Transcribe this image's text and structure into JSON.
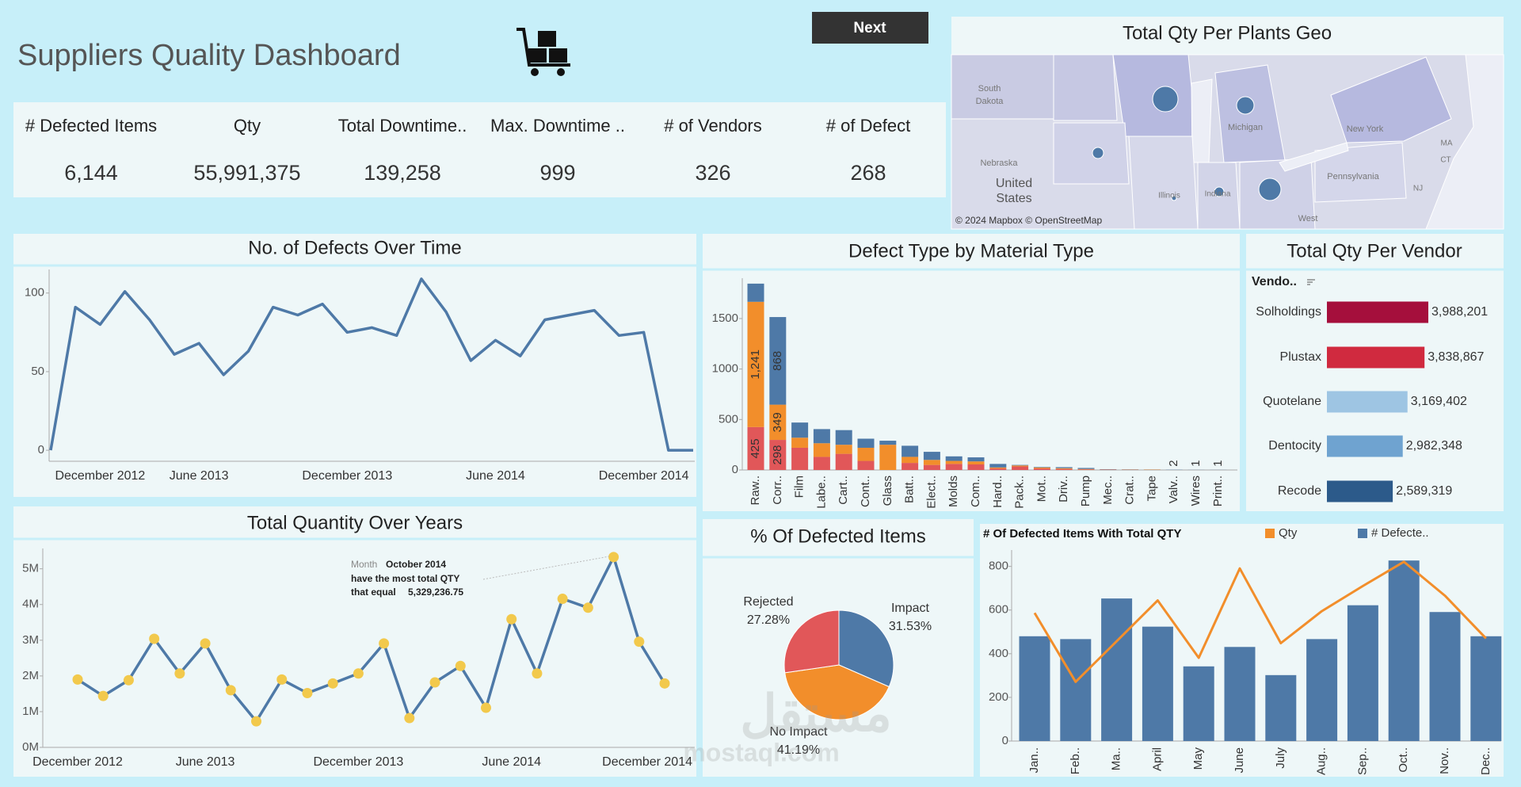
{
  "header": {
    "title": "Suppliers Quality Dashboard",
    "button": "Next"
  },
  "kpis": [
    {
      "label": "# Defected Items",
      "value": "6,144"
    },
    {
      "label": "Qty",
      "value": "55,991,375"
    },
    {
      "label": "Total Downtime..",
      "value": "139,258"
    },
    {
      "label": "Max. Downtime ..",
      "value": "999"
    },
    {
      "label": "# of Vendors",
      "value": "326"
    },
    {
      "label": "# of Defect",
      "value": "268"
    }
  ],
  "map": {
    "title": "Total Qty Per Plants Geo",
    "labels": [
      "South",
      "Dakota",
      "Nebraska",
      "United",
      "States",
      "Michigan",
      "Illinois",
      "Indiana",
      "New York",
      "Pennsylvania",
      "MA",
      "CT",
      "NJ",
      "West"
    ],
    "attribution": "© 2024 Mapbox © OpenStreetMap"
  },
  "watermark": {
    "arabic": "مستقل",
    "latin": "mostaql.com"
  },
  "chart_data": [
    {
      "type": "line",
      "title": "No. of Defects Over Time",
      "color": "#4e79a7",
      "categories": [
        null,
        null,
        "December 2012",
        null,
        null,
        null,
        "June 2013",
        null,
        null,
        null,
        null,
        null,
        "December 2013",
        null,
        null,
        null,
        null,
        null,
        "June 2014",
        null,
        null,
        null,
        null,
        null,
        "December 2014",
        null,
        null
      ],
      "values": [
        0,
        91,
        80,
        101,
        83,
        61,
        68,
        48,
        63,
        91,
        86,
        93,
        75,
        78,
        73,
        109,
        88,
        57,
        70,
        60,
        83,
        86,
        89,
        73,
        75,
        0,
        0
      ],
      "ylim": [
        -7,
        115
      ],
      "yticks": [
        0,
        50,
        100
      ]
    },
    {
      "type": "line",
      "title": "Total Quantity Over Years",
      "color": "#4e79a7",
      "marker_color": "#f2c94c",
      "categories": [
        "December 2012",
        null,
        null,
        null,
        null,
        "June 2013",
        null,
        null,
        null,
        null,
        null,
        "December 2013",
        null,
        null,
        null,
        null,
        null,
        "June 2014",
        null,
        null,
        null,
        null,
        null,
        "December 2014"
      ],
      "values": [
        1900000,
        1440000,
        1880000,
        3040000,
        2070000,
        2910000,
        1600000,
        730000,
        1900000,
        1520000,
        1790000,
        2070000,
        2910000,
        820000,
        1820000,
        2280000,
        1110000,
        3590000,
        2070000,
        4160000,
        3910000,
        5329236.75,
        2960000,
        1790000
      ],
      "ylim": [
        0,
        5570000
      ],
      "yticks": [
        {
          "value": 0,
          "label": "0M"
        },
        {
          "value": 1000000,
          "label": "1M"
        },
        {
          "value": 2000000,
          "label": "2M"
        },
        {
          "value": 3000000,
          "label": "3M"
        },
        {
          "value": 4000000,
          "label": "4M"
        },
        {
          "value": 5000000,
          "label": "5M"
        }
      ],
      "annotation": {
        "month_label": "Month",
        "month": "October 2014",
        "text": "have the most total QTY",
        "value_prefix": "that equal",
        "value_label": "5,329,236.75"
      }
    },
    {
      "type": "bar",
      "title": "Defect Type by Material Type",
      "stacked": true,
      "categories": [
        "Raw..",
        "Corr..",
        "Film",
        "Labe..",
        "Cart..",
        "Cont..",
        "Glass",
        "Batt..",
        "Elect..",
        "Molds",
        "Com..",
        "Hard..",
        "Pack..",
        "Mot..",
        "Driv..",
        "Pump",
        "Mec..",
        "Crat..",
        "Tape",
        "Valv..",
        "Wires",
        "Print.."
      ],
      "series": [
        {
          "color": "#e15759",
          "values": [
            425,
            298,
            220,
            130,
            160,
            90,
            0,
            70,
            50,
            60,
            55,
            15,
            35,
            15,
            10,
            5,
            3,
            2,
            1,
            0,
            0,
            0
          ],
          "value_labels": [
            "425",
            "298",
            null,
            null,
            null,
            null,
            null,
            null,
            null,
            null,
            null,
            null,
            null,
            null,
            null,
            null,
            null,
            null,
            null,
            null,
            null,
            null
          ]
        },
        {
          "color": "#f28e2b",
          "values": [
            1241,
            349,
            100,
            135,
            90,
            130,
            250,
            60,
            50,
            30,
            30,
            10,
            10,
            10,
            8,
            5,
            2,
            2,
            3,
            0,
            0,
            0
          ],
          "value_labels": [
            "1,241",
            "349",
            null,
            null,
            null,
            null,
            null,
            null,
            null,
            null,
            null,
            null,
            null,
            null,
            null,
            null,
            null,
            null,
            null,
            null,
            null,
            null
          ]
        },
        {
          "color": "#4e79a7",
          "values": [
            180,
            868,
            150,
            140,
            145,
            90,
            40,
            110,
            80,
            45,
            40,
            35,
            5,
            5,
            10,
            10,
            3,
            2,
            1,
            2,
            1,
            1
          ],
          "value_labels": [
            null,
            "868",
            null,
            null,
            null,
            null,
            null,
            null,
            null,
            null,
            null,
            null,
            null,
            null,
            null,
            null,
            null,
            null,
            null,
            "2",
            "1",
            "1"
          ]
        }
      ],
      "ylim": [
        0,
        1900
      ],
      "yticks": [
        0,
        500,
        1000,
        1500
      ]
    },
    {
      "type": "bar",
      "title": "Total Qty Per Vendor",
      "orientation": "horizontal",
      "axis_label": "Vendo..",
      "categories": [
        "Solholdings",
        "Plustax",
        "Quotelane",
        "Dentocity",
        "Recode"
      ],
      "values": [
        3988201,
        3838867,
        3169402,
        2982348,
        2589319
      ],
      "value_labels": [
        "3,988,201",
        "3,838,867",
        "3,169,402",
        "2,982,348",
        "2,589,319"
      ],
      "colors": [
        "#a50f3c",
        "#d02a3f",
        "#9ec5e3",
        "#6fa3d0",
        "#2c5a8a"
      ]
    },
    {
      "type": "pie",
      "title": "% Of Defected Items",
      "categories": [
        "Impact",
        "No Impact",
        "Rejected"
      ],
      "values": [
        31.53,
        41.19,
        27.28
      ],
      "value_labels": [
        "31.53%",
        "41.19%",
        "27.28%"
      ],
      "colors": [
        "#4e79a7",
        "#f28e2b",
        "#e15759"
      ]
    },
    {
      "type": "combo",
      "title": "# Of Defected Items With Total QTY",
      "categories": [
        "Jan..",
        "Feb..",
        "Ma..",
        "April",
        "May",
        "June",
        "July",
        "Aug..",
        "Sep..",
        "Oct..",
        "Nov..",
        "Dec.."
      ],
      "series": [
        {
          "name": "Qty",
          "color": "#f28e2b",
          "type": "line",
          "axis": "y2",
          "values": [
            4800000,
            2220000,
            3740000,
            5270000,
            3120000,
            6470000,
            3670000,
            4870000,
            5810000,
            6720000,
            5450000,
            3850000
          ]
        },
        {
          "name": "# Defecte..",
          "color": "#4e79a7",
          "type": "bar",
          "values": [
            480,
            467,
            653,
            524,
            342,
            431,
            302,
            467,
            622,
            827,
            591,
            480
          ]
        }
      ],
      "ylim": [
        0,
        875
      ],
      "yticks": [
        0,
        200,
        400,
        600,
        800
      ],
      "y2lim": [
        0,
        7160000
      ]
    }
  ]
}
